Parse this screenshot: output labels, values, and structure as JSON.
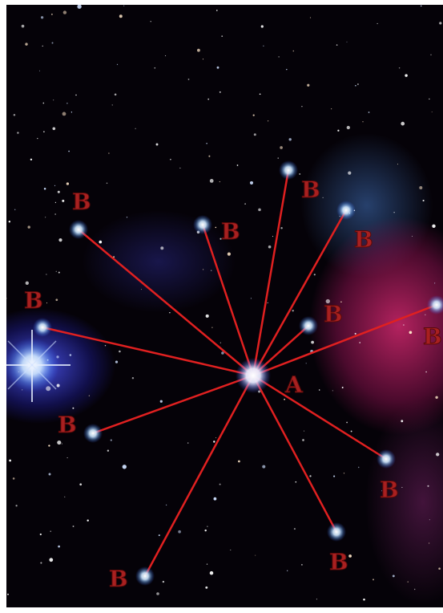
{
  "image": {
    "center_label": "A",
    "outer_label": "B",
    "colors": {
      "line": "#e02020",
      "label": "#a82020",
      "space": "#050208",
      "nebula_blue": "#5a5aff",
      "nebula_pink": "#d22870"
    }
  }
}
